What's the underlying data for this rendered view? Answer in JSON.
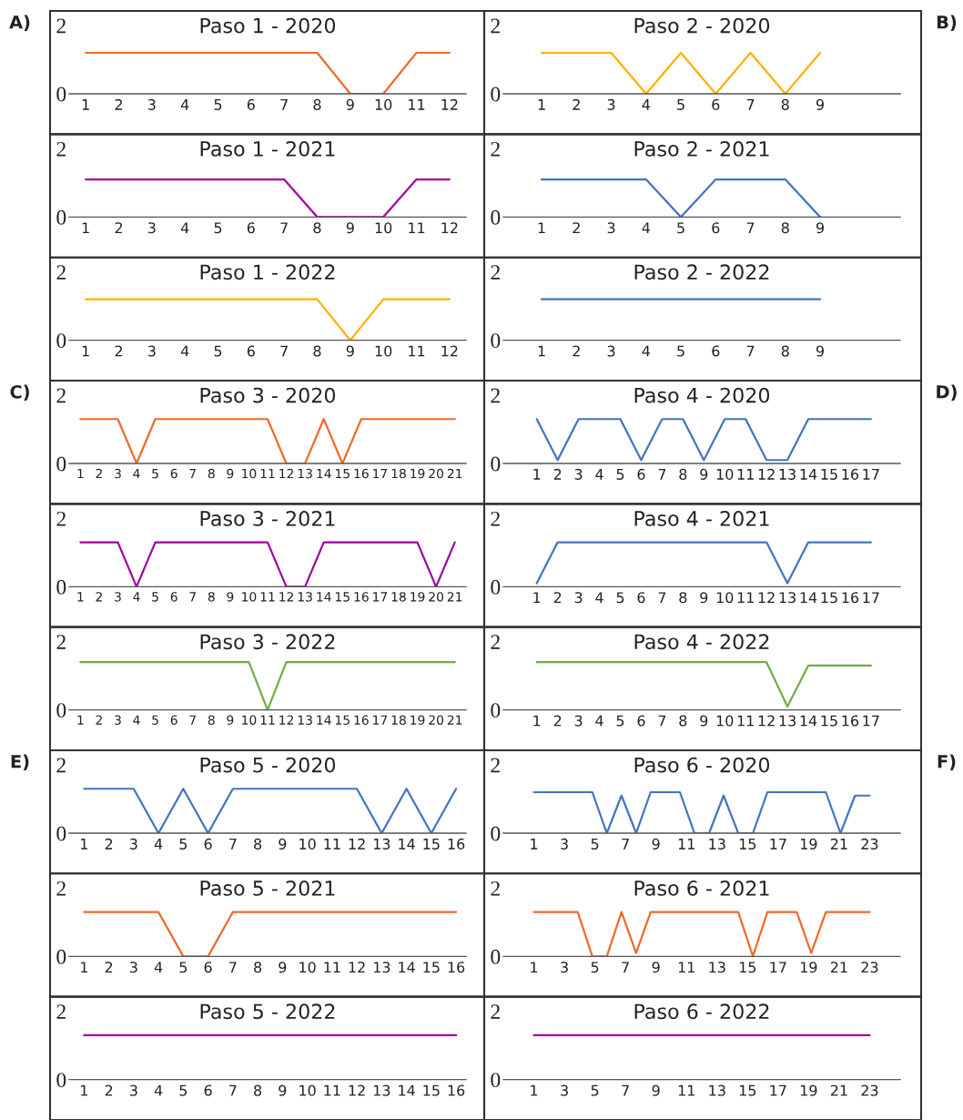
{
  "chart_data": [
    {
      "type": "line",
      "title": "Paso 1 - 2020",
      "annotations": [
        "A)"
      ],
      "x": [
        1,
        2,
        3,
        4,
        5,
        6,
        7,
        8,
        9,
        10,
        11,
        12
      ],
      "xlim": [
        0.5,
        12.5
      ],
      "xticks": [
        1,
        2,
        3,
        4,
        5,
        6,
        7,
        8,
        9,
        10,
        11,
        12
      ],
      "ylim": [
        0,
        2
      ],
      "yticks": [
        0,
        2
      ],
      "series": [
        {
          "color": "#f06a27",
          "values": [
            1.2,
            1.2,
            1.2,
            1.2,
            1.2,
            1.2,
            1.2,
            1.2,
            0,
            0,
            1.2,
            1.2
          ]
        }
      ]
    },
    {
      "type": "line",
      "title": "Paso 2 - 2020",
      "annotations": [
        "B)"
      ],
      "x": [
        1,
        2,
        3,
        4,
        5,
        6,
        7,
        8,
        9
      ],
      "xlim": [
        -0.1,
        11.3
      ],
      "xticks": [
        1,
        2,
        3,
        4,
        5,
        6,
        7,
        8,
        9
      ],
      "ylim": [
        0,
        2
      ],
      "yticks": [
        0,
        2
      ],
      "series": [
        {
          "color": "#ffb000",
          "values": [
            1.2,
            1.2,
            1.2,
            0,
            1.2,
            0,
            1.2,
            0,
            1.2
          ]
        }
      ]
    },
    {
      "type": "line",
      "title": "Paso 1 - 2021",
      "x": [
        1,
        2,
        3,
        4,
        5,
        6,
        7,
        8,
        9,
        10,
        11,
        12
      ],
      "xlim": [
        0.5,
        12.5
      ],
      "xticks": [
        1,
        2,
        3,
        4,
        5,
        6,
        7,
        8,
        9,
        10,
        11,
        12
      ],
      "ylim": [
        0,
        2
      ],
      "yticks": [
        0,
        2
      ],
      "series": [
        {
          "color": "#a000a0",
          "values": [
            1.1,
            1.1,
            1.1,
            1.1,
            1.1,
            1.1,
            1.1,
            0,
            0,
            0,
            1.1,
            1.1
          ]
        }
      ]
    },
    {
      "type": "line",
      "title": "Paso 2 - 2021",
      "x": [
        1,
        2,
        3,
        4,
        5,
        6,
        7,
        8,
        9
      ],
      "xlim": [
        -0.1,
        11.3
      ],
      "xticks": [
        1,
        2,
        3,
        4,
        5,
        6,
        7,
        8,
        9
      ],
      "ylim": [
        0,
        2
      ],
      "yticks": [
        0,
        2
      ],
      "series": [
        {
          "color": "#4472c4",
          "values": [
            1.1,
            1.1,
            1.1,
            1.1,
            0,
            1.1,
            1.1,
            1.1,
            0
          ]
        }
      ]
    },
    {
      "type": "line",
      "title": "Paso 1 - 2022",
      "x": [
        1,
        2,
        3,
        4,
        5,
        6,
        7,
        8,
        9,
        10,
        11,
        12
      ],
      "xlim": [
        0.5,
        12.5
      ],
      "xticks": [
        1,
        2,
        3,
        4,
        5,
        6,
        7,
        8,
        9,
        10,
        11,
        12
      ],
      "ylim": [
        0,
        2
      ],
      "yticks": [
        0,
        2
      ],
      "series": [
        {
          "color": "#ffb000",
          "values": [
            1.2,
            1.2,
            1.2,
            1.2,
            1.2,
            1.2,
            1.2,
            1.2,
            0,
            1.2,
            1.2,
            1.2
          ]
        }
      ]
    },
    {
      "type": "line",
      "title": "Paso 2 - 2022",
      "x": [
        1,
        2,
        3,
        4,
        5,
        6,
        7,
        8,
        9
      ],
      "xlim": [
        -0.1,
        11.3
      ],
      "xticks": [
        1,
        2,
        3,
        4,
        5,
        6,
        7,
        8,
        9
      ],
      "ylim": [
        0,
        2
      ],
      "yticks": [
        0,
        2
      ],
      "series": [
        {
          "color": "#4472c4",
          "values": [
            1.2,
            1.2,
            1.2,
            1.2,
            1.2,
            1.2,
            1.2,
            1.2,
            1.2
          ]
        }
      ]
    },
    {
      "type": "line",
      "title": "Paso 3 - 2020",
      "annotations": [
        "C)"
      ],
      "x": [
        1,
        2,
        3,
        4,
        5,
        6,
        7,
        8,
        9,
        10,
        11,
        12,
        13,
        14,
        15,
        16,
        17,
        18,
        19,
        20,
        21
      ],
      "xlim": [
        0.4,
        21.6
      ],
      "xticks": [
        1,
        2,
        3,
        4,
        5,
        6,
        7,
        8,
        9,
        10,
        11,
        12,
        13,
        14,
        15,
        16,
        17,
        18,
        19,
        20,
        21
      ],
      "ylim": [
        0,
        2
      ],
      "yticks": [
        0,
        2
      ],
      "series": [
        {
          "color": "#f06a27",
          "values": [
            1.3,
            1.3,
            1.3,
            0,
            1.3,
            1.3,
            1.3,
            1.3,
            1.3,
            1.3,
            1.3,
            0,
            0,
            1.3,
            0,
            1.3,
            1.3,
            1.3,
            1.3,
            1.3,
            1.3
          ]
        }
      ]
    },
    {
      "type": "line",
      "title": "Paso 4 - 2020",
      "annotations": [
        "D)"
      ],
      "x": [
        1,
        2,
        3,
        4,
        5,
        6,
        7,
        8,
        9,
        10,
        11,
        12,
        13,
        14,
        15,
        16,
        17
      ],
      "xlim": [
        -0.6,
        18.4
      ],
      "xticks": [
        1,
        2,
        3,
        4,
        5,
        6,
        7,
        8,
        9,
        10,
        11,
        12,
        13,
        14,
        15,
        16,
        17
      ],
      "ylim": [
        0,
        2
      ],
      "yticks": [
        0,
        2
      ],
      "series": [
        {
          "color": "#4472c4",
          "values": [
            1.3,
            0.1,
            1.3,
            1.3,
            1.3,
            0.1,
            1.3,
            1.3,
            0.1,
            1.3,
            1.3,
            0.1,
            0.1,
            1.3,
            1.3,
            1.3,
            1.3
          ]
        }
      ]
    },
    {
      "type": "line",
      "title": "Paso 3 - 2021",
      "x": [
        1,
        2,
        3,
        4,
        5,
        6,
        7,
        8,
        9,
        10,
        11,
        12,
        13,
        14,
        15,
        16,
        17,
        18,
        19,
        20,
        21
      ],
      "xlim": [
        0.4,
        21.6
      ],
      "xticks": [
        1,
        2,
        3,
        4,
        5,
        6,
        7,
        8,
        9,
        10,
        11,
        12,
        13,
        14,
        15,
        16,
        17,
        18,
        19,
        20,
        21
      ],
      "ylim": [
        0,
        2
      ],
      "yticks": [
        0,
        2
      ],
      "series": [
        {
          "color": "#a000a0",
          "values": [
            1.3,
            1.3,
            1.3,
            0,
            1.3,
            1.3,
            1.3,
            1.3,
            1.3,
            1.3,
            1.3,
            0,
            0,
            1.3,
            1.3,
            1.3,
            1.3,
            1.3,
            1.3,
            0,
            1.3
          ]
        }
      ]
    },
    {
      "type": "line",
      "title": "Paso 4 - 2021",
      "x": [
        1,
        2,
        3,
        4,
        5,
        6,
        7,
        8,
        9,
        10,
        11,
        12,
        13,
        14,
        15,
        16,
        17
      ],
      "xlim": [
        -0.6,
        18.4
      ],
      "xticks": [
        1,
        2,
        3,
        4,
        5,
        6,
        7,
        8,
        9,
        10,
        11,
        12,
        13,
        14,
        15,
        16,
        17
      ],
      "ylim": [
        0,
        2
      ],
      "yticks": [
        0,
        2
      ],
      "series": [
        {
          "color": "#4472c4",
          "values": [
            0.1,
            1.3,
            1.3,
            1.3,
            1.3,
            1.3,
            1.3,
            1.3,
            1.3,
            1.3,
            1.3,
            1.3,
            0.1,
            1.3,
            1.3,
            1.3,
            1.3
          ]
        }
      ]
    },
    {
      "type": "line",
      "title": "Paso 3 - 2022",
      "x": [
        1,
        2,
        3,
        4,
        5,
        6,
        7,
        8,
        9,
        10,
        11,
        12,
        13,
        14,
        15,
        16,
        17,
        18,
        19,
        20,
        21
      ],
      "xlim": [
        0.4,
        21.6
      ],
      "xticks": [
        1,
        2,
        3,
        4,
        5,
        6,
        7,
        8,
        9,
        10,
        11,
        12,
        13,
        14,
        15,
        16,
        17,
        18,
        19,
        20,
        21
      ],
      "ylim": [
        0,
        2
      ],
      "yticks": [
        0,
        2
      ],
      "series": [
        {
          "color": "#70ad47",
          "values": [
            1.4,
            1.4,
            1.4,
            1.4,
            1.4,
            1.4,
            1.4,
            1.4,
            1.4,
            1.4,
            0,
            1.4,
            1.4,
            1.4,
            1.4,
            1.4,
            1.4,
            1.4,
            1.4,
            1.4,
            1.4
          ]
        }
      ]
    },
    {
      "type": "line",
      "title": "Paso 4 - 2022",
      "x": [
        1,
        2,
        3,
        4,
        5,
        6,
        7,
        8,
        9,
        10,
        11,
        12,
        13,
        14,
        15,
        16,
        17
      ],
      "xlim": [
        -0.6,
        18.4
      ],
      "xticks": [
        1,
        2,
        3,
        4,
        5,
        6,
        7,
        8,
        9,
        10,
        11,
        12,
        13,
        14,
        15,
        16,
        17
      ],
      "ylim": [
        0,
        2
      ],
      "yticks": [
        0,
        2
      ],
      "series": [
        {
          "color": "#70ad47",
          "values": [
            1.4,
            1.4,
            1.4,
            1.4,
            1.4,
            1.4,
            1.4,
            1.4,
            1.4,
            1.4,
            1.4,
            1.4,
            0.1,
            1.3,
            1.3,
            1.3,
            1.3
          ]
        }
      ]
    },
    {
      "type": "line",
      "title": "Paso 5 - 2020",
      "annotations": [
        "E)"
      ],
      "x": [
        1,
        2,
        3,
        4,
        5,
        6,
        7,
        8,
        9,
        10,
        11,
        12,
        13,
        14,
        15,
        16
      ],
      "xlim": [
        0.4,
        16.4
      ],
      "xticks": [
        1,
        2,
        3,
        4,
        5,
        6,
        7,
        8,
        9,
        10,
        11,
        12,
        13,
        14,
        15,
        16
      ],
      "ylim": [
        0,
        2
      ],
      "yticks": [
        0,
        2
      ],
      "series": [
        {
          "color": "#4472c4",
          "values": [
            1.3,
            1.3,
            1.3,
            0,
            1.3,
            0,
            1.3,
            1.3,
            1.3,
            1.3,
            1.3,
            1.3,
            0,
            1.3,
            0,
            1.3
          ]
        }
      ]
    },
    {
      "type": "line",
      "title": "Paso 6 - 2020",
      "annotations": [
        "F)"
      ],
      "x": [
        1,
        1.96,
        2.91,
        3.87,
        4.83,
        5.78,
        6.74,
        7.7,
        8.65,
        9.61,
        10.57,
        11.52,
        12.48,
        13.43,
        14.39,
        15.35,
        16.3,
        17.26,
        18.22,
        19.17,
        20.13,
        21.09,
        22.04,
        23
      ],
      "xlim": [
        -1,
        25
      ],
      "xticks": [
        1,
        3,
        5,
        7,
        9,
        11,
        13,
        15,
        17,
        19,
        21,
        23
      ],
      "ylim": [
        0,
        2
      ],
      "yticks": [
        0,
        2
      ],
      "series": [
        {
          "color": "#4472c4",
          "values": [
            1.2,
            1.2,
            1.2,
            1.2,
            1.2,
            0,
            1.1,
            0,
            1.2,
            1.2,
            1.2,
            0,
            0,
            1.1,
            0,
            0,
            1.2,
            1.2,
            1.2,
            1.2,
            1.2,
            0,
            1.1,
            1.1
          ]
        }
      ]
    },
    {
      "type": "line",
      "title": "Paso 5 - 2021",
      "x": [
        1,
        2,
        3,
        4,
        5,
        6,
        7,
        8,
        9,
        10,
        11,
        12,
        13,
        14,
        15,
        16
      ],
      "xlim": [
        0.4,
        16.4
      ],
      "xticks": [
        1,
        2,
        3,
        4,
        5,
        6,
        7,
        8,
        9,
        10,
        11,
        12,
        13,
        14,
        15,
        16
      ],
      "ylim": [
        0,
        2
      ],
      "yticks": [
        0,
        2
      ],
      "series": [
        {
          "color": "#f06a27",
          "values": [
            1.3,
            1.3,
            1.3,
            1.3,
            0,
            0,
            1.3,
            1.3,
            1.3,
            1.3,
            1.3,
            1.3,
            1.3,
            1.3,
            1.3,
            1.3
          ]
        }
      ]
    },
    {
      "type": "line",
      "title": "Paso 6 - 2021",
      "x": [
        1,
        1.96,
        2.91,
        3.87,
        4.83,
        5.78,
        6.74,
        7.7,
        8.65,
        9.61,
        10.57,
        11.52,
        12.48,
        13.43,
        14.39,
        15.35,
        16.3,
        17.26,
        18.22,
        19.17,
        20.13,
        21.09,
        22.04,
        23
      ],
      "xlim": [
        -1,
        25
      ],
      "xticks": [
        1,
        3,
        5,
        7,
        9,
        11,
        13,
        15,
        17,
        19,
        21,
        23
      ],
      "ylim": [
        0,
        2
      ],
      "yticks": [
        0,
        2
      ],
      "series": [
        {
          "color": "#f06a27",
          "values": [
            1.3,
            1.3,
            1.3,
            1.3,
            0,
            0,
            1.3,
            0.1,
            1.3,
            1.3,
            1.3,
            1.3,
            1.3,
            1.3,
            1.3,
            0,
            1.3,
            1.3,
            1.3,
            0.1,
            1.3,
            1.3,
            1.3,
            1.3
          ]
        }
      ]
    },
    {
      "type": "line",
      "title": "Paso 5 - 2022",
      "x": [
        1,
        2,
        3,
        4,
        5,
        6,
        7,
        8,
        9,
        10,
        11,
        12,
        13,
        14,
        15,
        16
      ],
      "xlim": [
        0.4,
        16.4
      ],
      "xticks": [
        1,
        2,
        3,
        4,
        5,
        6,
        7,
        8,
        9,
        10,
        11,
        12,
        13,
        14,
        15,
        16
      ],
      "ylim": [
        0,
        2
      ],
      "yticks": [
        0,
        2
      ],
      "series": [
        {
          "color": "#a000a0",
          "values": [
            1.3,
            1.3,
            1.3,
            1.3,
            1.3,
            1.3,
            1.3,
            1.3,
            1.3,
            1.3,
            1.3,
            1.3,
            1.3,
            1.3,
            1.3,
            1.3
          ]
        }
      ]
    },
    {
      "type": "line",
      "title": "Paso 6 - 2022",
      "x": [
        1,
        1.96,
        2.91,
        3.87,
        4.83,
        5.78,
        6.74,
        7.7,
        8.65,
        9.61,
        10.57,
        11.52,
        12.48,
        13.43,
        14.39,
        15.35,
        16.3,
        17.26,
        18.22,
        19.17,
        20.13,
        21.09,
        22.04,
        23
      ],
      "xlim": [
        -1,
        25
      ],
      "xticks": [
        1,
        3,
        5,
        7,
        9,
        11,
        13,
        15,
        17,
        19,
        21,
        23
      ],
      "ylim": [
        0,
        2
      ],
      "yticks": [
        0,
        2
      ],
      "series": [
        {
          "color": "#a000a0",
          "values": [
            1.3,
            1.3,
            1.3,
            1.3,
            1.3,
            1.3,
            1.3,
            1.3,
            1.3,
            1.3,
            1.3,
            1.3,
            1.3,
            1.3,
            1.3,
            1.3,
            1.3,
            1.3,
            1.3,
            1.3,
            1.3,
            1.3,
            1.3,
            1.3
          ]
        }
      ]
    }
  ]
}
